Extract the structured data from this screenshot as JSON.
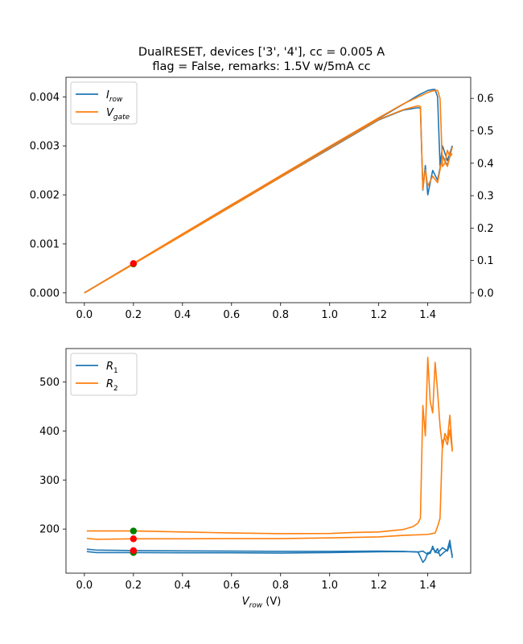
{
  "title_line1": "DualRESET, devices ['3', '4'], cc = 0.005 A",
  "title_line2": "flag = False, remarks: 1.5V w/5mA cc",
  "xlabel": {
    "sym": "V",
    "sub": "row",
    "unit": " (V)"
  },
  "colors": {
    "blue": "#1f77b4",
    "orange": "#ff7f0e",
    "marker_green": "#008000",
    "marker_red": "#ff0000"
  },
  "chart_data": [
    {
      "type": "line",
      "xlim": [
        -0.075,
        1.575
      ],
      "xticks": [
        0.0,
        0.2,
        0.4,
        0.6,
        0.8,
        1.0,
        1.2,
        1.4
      ],
      "ylim_left": [
        -0.0002,
        0.0044
      ],
      "yticks_left": [
        0.0,
        0.001,
        0.002,
        0.003,
        0.004
      ],
      "ylim_right": [
        -0.03,
        0.665
      ],
      "yticks_right": [
        0.0,
        0.1,
        0.2,
        0.3,
        0.4,
        0.5,
        0.6
      ],
      "legend": [
        {
          "sym": "I",
          "sub": "row",
          "color": "blue"
        },
        {
          "sym": "V",
          "sub": "gate",
          "color": "orange"
        }
      ],
      "legend_loc": "upper-left",
      "series": [
        {
          "name": "I_row",
          "color": "blue",
          "axis": "left",
          "points": [
            [
              0,
              0
            ],
            [
              0.2,
              0.00059
            ],
            [
              0.4,
              0.00118
            ],
            [
              0.6,
              0.00177
            ],
            [
              0.8,
              0.00236
            ],
            [
              1.0,
              0.00294
            ],
            [
              1.2,
              0.00353
            ],
            [
              1.3,
              0.00373
            ],
            [
              1.36,
              0.00378
            ],
            [
              1.37,
              0.00377
            ],
            [
              1.38,
              0.0021
            ],
            [
              1.39,
              0.0026
            ],
            [
              1.4,
              0.002
            ],
            [
              1.42,
              0.0025
            ],
            [
              1.44,
              0.0023
            ],
            [
              1.46,
              0.0028
            ],
            [
              1.48,
              0.0026
            ],
            [
              1.5,
              0.003
            ]
          ]
        },
        {
          "name": "I_row",
          "color": "blue",
          "axis": "left",
          "points": [
            [
              0,
              0
            ],
            [
              0.2,
              0.0006
            ],
            [
              0.4,
              0.0012
            ],
            [
              0.6,
              0.0018
            ],
            [
              0.8,
              0.00238
            ],
            [
              1.0,
              0.00297
            ],
            [
              1.2,
              0.00356
            ],
            [
              1.3,
              0.00385
            ],
            [
              1.36,
              0.00403
            ],
            [
              1.4,
              0.00413
            ],
            [
              1.42,
              0.00415
            ],
            [
              1.43,
              0.00415
            ],
            [
              1.44,
              0.004
            ],
            [
              1.45,
              0.0026
            ],
            [
              1.46,
              0.003
            ],
            [
              1.48,
              0.0027
            ],
            [
              1.5,
              0.003
            ]
          ]
        },
        {
          "name": "V_gate",
          "color": "orange",
          "axis": "right",
          "points": [
            [
              0,
              0
            ],
            [
              0.2,
              0.089
            ],
            [
              0.4,
              0.178
            ],
            [
              0.6,
              0.267
            ],
            [
              0.8,
              0.357
            ],
            [
              1.0,
              0.446
            ],
            [
              1.2,
              0.535
            ],
            [
              1.3,
              0.565
            ],
            [
              1.36,
              0.577
            ],
            [
              1.37,
              0.575
            ],
            [
              1.38,
              0.32
            ],
            [
              1.39,
              0.38
            ],
            [
              1.4,
              0.33
            ],
            [
              1.42,
              0.36
            ],
            [
              1.44,
              0.34
            ],
            [
              1.46,
              0.42
            ],
            [
              1.48,
              0.39
            ],
            [
              1.5,
              0.45
            ]
          ]
        },
        {
          "name": "V_gate",
          "color": "orange",
          "axis": "right",
          "points": [
            [
              0,
              0
            ],
            [
              0.2,
              0.091
            ],
            [
              0.4,
              0.182
            ],
            [
              0.6,
              0.272
            ],
            [
              0.8,
              0.362
            ],
            [
              1.0,
              0.452
            ],
            [
              1.2,
              0.54
            ],
            [
              1.3,
              0.583
            ],
            [
              1.36,
              0.604
            ],
            [
              1.4,
              0.618
            ],
            [
              1.42,
              0.623
            ],
            [
              1.44,
              0.625
            ],
            [
              1.45,
              0.6
            ],
            [
              1.46,
              0.39
            ],
            [
              1.47,
              0.4
            ],
            [
              1.48,
              0.44
            ],
            [
              1.49,
              0.42
            ],
            [
              1.5,
              0.43
            ]
          ]
        }
      ],
      "markers": [
        {
          "x": 0.2,
          "y": 0.00059,
          "color": "marker_green"
        },
        {
          "x": 0.2,
          "y": 0.0006,
          "color": "marker_red"
        }
      ]
    },
    {
      "type": "line",
      "xlim": [
        -0.075,
        1.575
      ],
      "xticks": [
        0.0,
        0.2,
        0.4,
        0.6,
        0.8,
        1.0,
        1.2,
        1.4
      ],
      "ylim": [
        110,
        568
      ],
      "yticks": [
        200,
        300,
        400,
        500
      ],
      "legend": [
        {
          "sym": "R",
          "sub": "1",
          "color": "blue"
        },
        {
          "sym": "R",
          "sub": "2",
          "color": "orange"
        }
      ],
      "legend_loc": "upper-left",
      "series": [
        {
          "name": "R_1",
          "color": "blue",
          "points": [
            [
              0.01,
              159
            ],
            [
              0.05,
              157
            ],
            [
              0.2,
              156
            ],
            [
              0.4,
              155.5
            ],
            [
              0.6,
              155
            ],
            [
              0.8,
              154.5
            ],
            [
              1.0,
              154.5
            ],
            [
              1.2,
              155
            ],
            [
              1.3,
              154.5
            ],
            [
              1.36,
              153
            ],
            [
              1.38,
              155
            ],
            [
              1.4,
              148
            ],
            [
              1.42,
              160
            ],
            [
              1.44,
              151
            ],
            [
              1.46,
              162
            ],
            [
              1.48,
              155
            ],
            [
              1.49,
              168
            ],
            [
              1.5,
              146
            ]
          ]
        },
        {
          "name": "R_1",
          "color": "blue",
          "points": [
            [
              0.01,
              154
            ],
            [
              0.05,
              152
            ],
            [
              0.2,
              152
            ],
            [
              0.4,
              151.5
            ],
            [
              0.6,
              151.5
            ],
            [
              0.8,
              151
            ],
            [
              1.0,
              152
            ],
            [
              1.2,
              153.5
            ],
            [
              1.3,
              154
            ],
            [
              1.36,
              153.5
            ],
            [
              1.38,
              132
            ],
            [
              1.39,
              138
            ],
            [
              1.4,
              152
            ],
            [
              1.41,
              150
            ],
            [
              1.42,
              165
            ],
            [
              1.43,
              152
            ],
            [
              1.44,
              160
            ],
            [
              1.45,
              145
            ],
            [
              1.46,
              150
            ],
            [
              1.48,
              158
            ],
            [
              1.49,
              177
            ],
            [
              1.5,
              141
            ]
          ]
        },
        {
          "name": "R_2",
          "color": "orange",
          "points": [
            [
              0.01,
              196
            ],
            [
              0.1,
              196
            ],
            [
              0.2,
              196
            ],
            [
              0.4,
              194
            ],
            [
              0.6,
              192
            ],
            [
              0.8,
              190.5
            ],
            [
              1.0,
              191
            ],
            [
              1.1,
              193
            ],
            [
              1.2,
              194
            ],
            [
              1.3,
              199
            ],
            [
              1.34,
              205
            ],
            [
              1.36,
              212
            ],
            [
              1.37,
              222
            ],
            [
              1.38,
              452
            ],
            [
              1.39,
              390
            ],
            [
              1.4,
              550
            ],
            [
              1.41,
              460
            ],
            [
              1.42,
              437
            ],
            [
              1.43,
              540
            ],
            [
              1.44,
              480
            ],
            [
              1.45,
              410
            ],
            [
              1.46,
              365
            ],
            [
              1.47,
              395
            ],
            [
              1.48,
              382
            ],
            [
              1.49,
              432
            ],
            [
              1.5,
              362
            ]
          ]
        },
        {
          "name": "R_2",
          "color": "orange",
          "points": [
            [
              0.01,
              181
            ],
            [
              0.05,
              179
            ],
            [
              0.2,
              180
            ],
            [
              0.4,
              180
            ],
            [
              0.6,
              180.5
            ],
            [
              0.8,
              180.5
            ],
            [
              1.0,
              182
            ],
            [
              1.2,
              184
            ],
            [
              1.3,
              187
            ],
            [
              1.4,
              189
            ],
            [
              1.43,
              192
            ],
            [
              1.44,
              205
            ],
            [
              1.45,
              222
            ],
            [
              1.46,
              380
            ],
            [
              1.47,
              385
            ],
            [
              1.48,
              372
            ],
            [
              1.49,
              402
            ],
            [
              1.5,
              358
            ]
          ]
        }
      ],
      "markers": [
        {
          "x": 0.2,
          "y": 196,
          "color": "marker_green"
        },
        {
          "x": 0.2,
          "y": 152,
          "color": "marker_green"
        },
        {
          "x": 0.2,
          "y": 180,
          "color": "marker_red"
        },
        {
          "x": 0.2,
          "y": 156,
          "color": "marker_red"
        }
      ]
    }
  ]
}
